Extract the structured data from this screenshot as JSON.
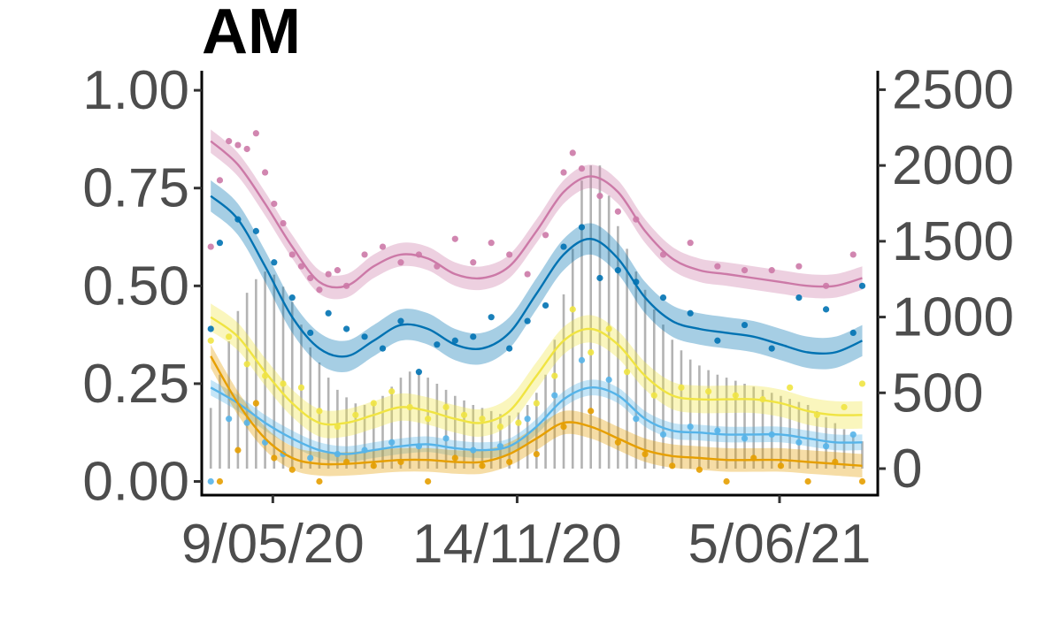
{
  "chart_data": {
    "type": "line",
    "title": "AM",
    "xlabel": "",
    "ylabel": "",
    "ylabel_right": "",
    "x_axis": {
      "type": "date",
      "range": [
        "2020-03-15",
        "2021-08-20"
      ],
      "ticks": [
        {
          "date": "2020-05-09",
          "label": "9/05/20"
        },
        {
          "date": "2020-11-14",
          "label": "14/11/20"
        },
        {
          "date": "2021-06-05",
          "label": "5/06/21"
        }
      ]
    },
    "y_left": {
      "range": [
        -0.035,
        1.05
      ],
      "ticks": [
        {
          "value": 0,
          "label": "0.00"
        },
        {
          "value": 0.25,
          "label": "0.25"
        },
        {
          "value": 0.5,
          "label": "0.50"
        },
        {
          "value": 0.75,
          "label": "0.75"
        },
        {
          "value": 1.0,
          "label": "1.00"
        }
      ]
    },
    "y_right": {
      "range": [
        -175,
        2625
      ],
      "ticks": [
        {
          "value": 0,
          "label": "0"
        },
        {
          "value": 500,
          "label": "500"
        },
        {
          "value": 1000,
          "label": "1000"
        },
        {
          "value": 1500,
          "label": "1500"
        },
        {
          "value": 2000,
          "label": "2000"
        },
        {
          "value": 2500,
          "label": "2500"
        }
      ]
    },
    "grid": false,
    "legend": "none",
    "bars": {
      "name": "",
      "axis": "right",
      "color": "#b3b3b3",
      "dates": [
        "2020-03-22",
        "2020-03-29",
        "2020-04-05",
        "2020-04-12",
        "2020-04-19",
        "2020-04-26",
        "2020-05-03",
        "2020-05-10",
        "2020-05-17",
        "2020-05-24",
        "2020-05-31",
        "2020-06-07",
        "2020-06-14",
        "2020-06-21",
        "2020-06-28",
        "2020-07-05",
        "2020-07-12",
        "2020-07-19",
        "2020-07-26",
        "2020-08-02",
        "2020-08-09",
        "2020-08-16",
        "2020-08-23",
        "2020-08-30",
        "2020-09-06",
        "2020-09-13",
        "2020-09-20",
        "2020-09-27",
        "2020-10-04",
        "2020-10-11",
        "2020-10-18",
        "2020-10-25",
        "2020-11-01",
        "2020-11-08",
        "2020-11-15",
        "2020-11-22",
        "2020-11-29",
        "2020-12-06",
        "2020-12-13",
        "2020-12-20",
        "2020-12-27",
        "2021-01-03",
        "2021-01-10",
        "2021-01-17",
        "2021-01-24",
        "2021-01-31",
        "2021-02-07",
        "2021-02-14",
        "2021-02-21",
        "2021-02-28",
        "2021-03-07",
        "2021-03-14",
        "2021-03-21",
        "2021-03-28",
        "2021-04-04",
        "2021-04-11",
        "2021-04-18",
        "2021-04-25",
        "2021-05-02",
        "2021-05-09",
        "2021-05-16",
        "2021-05-23",
        "2021-05-30",
        "2021-06-06",
        "2021-06-13",
        "2021-06-20",
        "2021-06-27",
        "2021-07-04",
        "2021-07-11",
        "2021-07-18",
        "2021-07-25",
        "2021-08-01",
        "2021-08-08"
      ],
      "values": [
        400,
        620,
        840,
        1040,
        1160,
        1250,
        1300,
        1280,
        1200,
        1100,
        950,
        800,
        700,
        600,
        520,
        470,
        430,
        420,
        440,
        480,
        540,
        600,
        640,
        640,
        600,
        560,
        520,
        480,
        450,
        420,
        400,
        380,
        360,
        350,
        370,
        420,
        500,
        620,
        850,
        1150,
        1450,
        1900,
        2000,
        2000,
        1800,
        1600,
        1450,
        1300,
        1180,
        1050,
        950,
        850,
        780,
        720,
        680,
        650,
        620,
        600,
        580,
        560,
        540,
        520,
        500,
        480,
        460,
        440,
        420,
        380,
        340,
        300,
        260,
        220,
        180
      ]
    },
    "series": [
      {
        "color": "#cc79a7",
        "x": [
          "2020-03-22",
          "2020-04-12",
          "2020-05-03",
          "2020-05-24",
          "2020-06-14",
          "2020-07-05",
          "2020-07-26",
          "2020-08-16",
          "2020-09-06",
          "2020-09-27",
          "2020-10-18",
          "2020-11-08",
          "2020-11-29",
          "2020-12-20",
          "2021-01-10",
          "2021-01-31",
          "2021-02-21",
          "2021-03-14",
          "2021-04-04",
          "2021-04-25",
          "2021-05-16",
          "2021-06-06",
          "2021-06-27",
          "2021-07-18",
          "2021-08-08"
        ],
        "y": [
          0.87,
          0.81,
          0.71,
          0.6,
          0.51,
          0.5,
          0.55,
          0.58,
          0.57,
          0.53,
          0.52,
          0.55,
          0.64,
          0.74,
          0.78,
          0.74,
          0.64,
          0.57,
          0.54,
          0.53,
          0.52,
          0.51,
          0.5,
          0.5,
          0.52
        ],
        "band": 0.03,
        "points_x": [
          "2020-03-22",
          "2020-03-29",
          "2020-04-05",
          "2020-04-12",
          "2020-04-19",
          "2020-04-26",
          "2020-05-03",
          "2020-05-10",
          "2020-05-17",
          "2020-05-24",
          "2020-05-31",
          "2020-06-07",
          "2020-06-14",
          "2020-06-21",
          "2020-06-28",
          "2020-07-05",
          "2020-07-19",
          "2020-08-02",
          "2020-08-16",
          "2020-08-30",
          "2020-09-13",
          "2020-09-27",
          "2020-10-11",
          "2020-10-25",
          "2020-11-08",
          "2020-11-22",
          "2020-12-06",
          "2020-12-20",
          "2020-12-27",
          "2021-01-03",
          "2021-01-17",
          "2021-01-31",
          "2021-02-14",
          "2021-03-07",
          "2021-03-28",
          "2021-04-18",
          "2021-05-09",
          "2021-05-30",
          "2021-06-20",
          "2021-07-11",
          "2021-08-01"
        ],
        "points_y": [
          0.6,
          0.77,
          0.87,
          0.86,
          0.85,
          0.89,
          0.79,
          0.71,
          0.66,
          0.58,
          0.55,
          0.52,
          0.49,
          0.53,
          0.54,
          0.5,
          0.58,
          0.6,
          0.56,
          0.58,
          0.55,
          0.62,
          0.56,
          0.61,
          0.58,
          0.53,
          0.63,
          0.79,
          0.84,
          0.8,
          0.73,
          0.69,
          0.67,
          0.58,
          0.61,
          0.55,
          0.54,
          0.54,
          0.55,
          0.5,
          0.58
        ]
      },
      {
        "color": "#0072b2",
        "x": [
          "2020-03-22",
          "2020-04-12",
          "2020-05-03",
          "2020-05-24",
          "2020-06-14",
          "2020-07-05",
          "2020-07-26",
          "2020-08-16",
          "2020-09-06",
          "2020-09-27",
          "2020-10-18",
          "2020-11-08",
          "2020-11-29",
          "2020-12-20",
          "2021-01-10",
          "2021-01-31",
          "2021-02-21",
          "2021-03-14",
          "2021-04-04",
          "2021-04-25",
          "2021-05-16",
          "2021-06-06",
          "2021-06-27",
          "2021-07-18",
          "2021-08-08"
        ],
        "y": [
          0.73,
          0.67,
          0.55,
          0.42,
          0.34,
          0.32,
          0.36,
          0.4,
          0.39,
          0.35,
          0.34,
          0.38,
          0.48,
          0.58,
          0.62,
          0.57,
          0.47,
          0.41,
          0.39,
          0.38,
          0.37,
          0.35,
          0.33,
          0.33,
          0.36
        ],
        "band": 0.04,
        "points_x": [
          "2020-03-22",
          "2020-03-29",
          "2020-04-12",
          "2020-04-26",
          "2020-05-10",
          "2020-05-24",
          "2020-06-07",
          "2020-06-21",
          "2020-07-05",
          "2020-07-19",
          "2020-08-02",
          "2020-08-16",
          "2020-08-30",
          "2020-09-13",
          "2020-09-27",
          "2020-10-11",
          "2020-10-25",
          "2020-11-08",
          "2020-11-22",
          "2020-12-06",
          "2020-12-20",
          "2021-01-03",
          "2021-01-17",
          "2021-01-31",
          "2021-02-14",
          "2021-03-07",
          "2021-03-28",
          "2021-04-18",
          "2021-05-09",
          "2021-05-30",
          "2021-06-20",
          "2021-07-11",
          "2021-08-01",
          "2021-08-08"
        ],
        "points_y": [
          0.39,
          0.61,
          0.67,
          0.64,
          0.56,
          0.47,
          0.38,
          0.43,
          0.39,
          0.37,
          0.34,
          0.41,
          0.28,
          0.35,
          0.36,
          0.37,
          0.42,
          0.34,
          0.41,
          0.45,
          0.6,
          0.65,
          0.52,
          0.54,
          0.51,
          0.47,
          0.43,
          0.36,
          0.4,
          0.34,
          0.47,
          0.44,
          0.38,
          0.5
        ]
      },
      {
        "color": "#f0e442",
        "x": [
          "2020-03-22",
          "2020-04-12",
          "2020-05-03",
          "2020-05-24",
          "2020-06-14",
          "2020-07-05",
          "2020-07-26",
          "2020-08-16",
          "2020-09-06",
          "2020-09-27",
          "2020-10-18",
          "2020-11-08",
          "2020-11-29",
          "2020-12-20",
          "2021-01-10",
          "2021-01-31",
          "2021-02-21",
          "2021-03-14",
          "2021-04-04",
          "2021-04-25",
          "2021-05-16",
          "2021-06-06",
          "2021-06-27",
          "2021-07-18",
          "2021-08-08"
        ],
        "y": [
          0.42,
          0.37,
          0.28,
          0.2,
          0.15,
          0.15,
          0.17,
          0.19,
          0.18,
          0.16,
          0.15,
          0.18,
          0.27,
          0.36,
          0.39,
          0.35,
          0.27,
          0.22,
          0.21,
          0.21,
          0.21,
          0.2,
          0.18,
          0.17,
          0.17
        ],
        "band": 0.035,
        "points_x": [
          "2020-03-22",
          "2020-04-05",
          "2020-04-19",
          "2020-05-03",
          "2020-05-17",
          "2020-05-31",
          "2020-06-14",
          "2020-06-28",
          "2020-07-12",
          "2020-07-26",
          "2020-08-09",
          "2020-08-23",
          "2020-09-06",
          "2020-09-20",
          "2020-10-04",
          "2020-10-18",
          "2020-11-01",
          "2020-11-15",
          "2020-11-29",
          "2020-12-13",
          "2020-12-27",
          "2021-01-10",
          "2021-01-24",
          "2021-02-07",
          "2021-02-28",
          "2021-03-21",
          "2021-04-11",
          "2021-05-02",
          "2021-05-23",
          "2021-06-13",
          "2021-07-04",
          "2021-07-25",
          "2021-08-08"
        ],
        "points_y": [
          0.36,
          0.37,
          0.3,
          0.27,
          0.25,
          0.24,
          0.18,
          0.14,
          0.17,
          0.2,
          0.23,
          0.19,
          0.16,
          0.19,
          0.17,
          0.16,
          0.14,
          0.15,
          0.2,
          0.27,
          0.44,
          0.33,
          0.39,
          0.28,
          0.22,
          0.24,
          0.23,
          0.22,
          0.21,
          0.24,
          0.17,
          0.19,
          0.25
        ]
      },
      {
        "color": "#56b4e9",
        "x": [
          "2020-03-22",
          "2020-04-12",
          "2020-05-03",
          "2020-05-24",
          "2020-06-14",
          "2020-07-05",
          "2020-07-26",
          "2020-08-16",
          "2020-09-06",
          "2020-09-27",
          "2020-10-18",
          "2020-11-08",
          "2020-11-29",
          "2020-12-20",
          "2021-01-10",
          "2021-01-31",
          "2021-02-21",
          "2021-03-14",
          "2021-04-04",
          "2021-04-25",
          "2021-05-16",
          "2021-06-06",
          "2021-06-27",
          "2021-07-18",
          "2021-08-08"
        ],
        "y": [
          0.24,
          0.2,
          0.15,
          0.11,
          0.08,
          0.07,
          0.08,
          0.09,
          0.095,
          0.085,
          0.08,
          0.09,
          0.14,
          0.21,
          0.24,
          0.22,
          0.16,
          0.13,
          0.125,
          0.12,
          0.12,
          0.12,
          0.11,
          0.1,
          0.1
        ],
        "band": 0.02,
        "points_x": [
          "2020-03-22",
          "2020-04-05",
          "2020-04-19",
          "2020-05-03",
          "2020-05-17",
          "2020-06-07",
          "2020-06-28",
          "2020-07-19",
          "2020-08-09",
          "2020-08-30",
          "2020-09-20",
          "2020-10-11",
          "2020-11-01",
          "2020-11-22",
          "2020-12-13",
          "2021-01-03",
          "2021-01-24",
          "2021-02-14",
          "2021-03-07",
          "2021-03-28",
          "2021-04-18",
          "2021-05-09",
          "2021-05-30",
          "2021-06-20",
          "2021-07-11",
          "2021-08-01"
        ],
        "points_y": [
          0.0,
          0.16,
          0.15,
          0.1,
          0.07,
          0.06,
          0.07,
          0.08,
          0.1,
          0.09,
          0.11,
          0.08,
          0.09,
          0.16,
          0.22,
          0.31,
          0.26,
          0.16,
          0.12,
          0.14,
          0.13,
          0.11,
          0.12,
          0.1,
          0.09,
          0.12
        ]
      },
      {
        "color": "#e69f00",
        "x": [
          "2020-03-22",
          "2020-04-12",
          "2020-05-03",
          "2020-05-24",
          "2020-06-14",
          "2020-07-05",
          "2020-07-26",
          "2020-08-16",
          "2020-09-06",
          "2020-09-27",
          "2020-10-18",
          "2020-11-08",
          "2020-11-29",
          "2020-12-20",
          "2021-01-10",
          "2021-01-31",
          "2021-02-21",
          "2021-03-14",
          "2021-04-04",
          "2021-04-25",
          "2021-05-16",
          "2021-06-06",
          "2021-06-27",
          "2021-07-18",
          "2021-08-08"
        ],
        "y": [
          0.32,
          0.2,
          0.11,
          0.06,
          0.045,
          0.045,
          0.05,
          0.055,
          0.055,
          0.05,
          0.05,
          0.07,
          0.11,
          0.15,
          0.14,
          0.11,
          0.08,
          0.065,
          0.06,
          0.055,
          0.055,
          0.055,
          0.05,
          0.045,
          0.04
        ],
        "band": 0.03,
        "points_x": [
          "2020-03-29",
          "2020-04-12",
          "2020-04-26",
          "2020-05-10",
          "2020-05-24",
          "2020-06-14",
          "2020-07-05",
          "2020-07-26",
          "2020-08-16",
          "2020-09-06",
          "2020-09-27",
          "2020-10-18",
          "2020-11-08",
          "2020-11-29",
          "2020-12-20",
          "2021-01-10",
          "2021-01-31",
          "2021-02-21",
          "2021-03-14",
          "2021-04-04",
          "2021-04-25",
          "2021-05-16",
          "2021-06-06",
          "2021-06-27",
          "2021-07-18",
          "2021-08-08"
        ],
        "points_y": [
          0.0,
          0.08,
          0.2,
          0.06,
          0.03,
          0.0,
          0.05,
          0.04,
          0.05,
          0.0,
          0.06,
          0.04,
          0.05,
          0.07,
          0.14,
          0.18,
          0.1,
          0.07,
          0.04,
          0.03,
          0.0,
          0.06,
          0.04,
          0.0,
          0.05,
          0.0
        ]
      }
    ]
  }
}
